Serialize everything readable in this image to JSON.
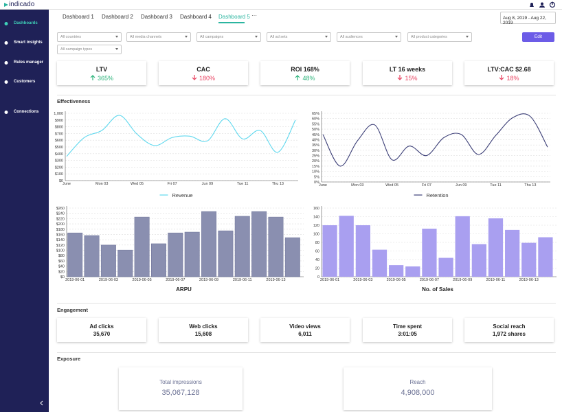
{
  "brand": "indicado",
  "nav": [
    "Dashboards",
    "Smart insights",
    "Rules manager",
    "Customers",
    "Connections"
  ],
  "tabs": {
    "items": [
      "Dashboard 1",
      "Dashboard 2",
      "Dashboard 3",
      "Dashboard 4",
      "Dashboard 5"
    ],
    "active": 4,
    "more": "···"
  },
  "date_range": "Aug 8, 2019 - Aug 22, 2019",
  "filters": [
    "All countries",
    "All media channels",
    "All campaigns",
    "All ad sets",
    "All audiences",
    "All product categories",
    "All campaign types"
  ],
  "edit": "Edit",
  "kpis": [
    {
      "label": "LTV",
      "change": "365%",
      "direction": "up"
    },
    {
      "label": "CAC",
      "change": "180%",
      "direction": "down"
    },
    {
      "label": "ROI 168%",
      "change": "48%",
      "direction": "up"
    },
    {
      "label": "LT 16 weeks",
      "change": "15%",
      "direction": "down"
    },
    {
      "label": "LTV:CAC $2.68",
      "change": "18%",
      "direction": "down"
    }
  ],
  "effectiveness": {
    "title": "Effectiveness",
    "charts": [
      {
        "type": "line",
        "series": [
          {
            "name": "Revenue",
            "color": "#5fd8ee",
            "values": [
              360,
              640,
              745,
              970,
              690,
              520,
              640,
              660,
              590,
              920,
              620,
              745,
              420,
              900
            ]
          }
        ],
        "categories": [
          "June",
          null,
          "Mon 03",
          null,
          "Wed 05",
          null,
          "Fri 07",
          null,
          "Jun 09",
          null,
          "Tue 11",
          null,
          "Thu 13",
          null
        ],
        "ylim": [
          0,
          1000
        ],
        "yticks": [
          {
            "value": 0,
            "label": "$0"
          },
          {
            "value": 100,
            "label": "$100"
          },
          {
            "value": 200,
            "label": "$200"
          },
          {
            "value": 300,
            "label": "$300"
          },
          {
            "value": 400,
            "label": "$400"
          },
          {
            "value": 500,
            "label": "$500"
          },
          {
            "value": 600,
            "label": "$600"
          },
          {
            "value": 700,
            "label": "$700"
          },
          {
            "value": 800,
            "label": "$800"
          },
          {
            "value": 900,
            "label": "$900"
          },
          {
            "value": 1000,
            "label": "1,000"
          }
        ],
        "grid": true
      },
      {
        "type": "line",
        "series": [
          {
            "name": "Retention",
            "color": "#3c3f77",
            "values": [
              45,
              15,
              39,
              54,
              21,
              34,
              25,
              42,
              45,
              26,
              44,
              61,
              62,
              33
            ]
          }
        ],
        "categories": [
          "June",
          null,
          "Mon 03",
          null,
          "Wed 05",
          null,
          "Fri 07",
          null,
          "Jun 09",
          null,
          "Tue 11",
          null,
          "Thu 13",
          null
        ],
        "ylim": [
          0,
          65
        ],
        "yticks": [
          {
            "value": 0,
            "label": "0%"
          },
          {
            "value": 5,
            "label": "5%"
          },
          {
            "value": 10,
            "label": "10%"
          },
          {
            "value": 15,
            "label": "15%"
          },
          {
            "value": 20,
            "label": "20%"
          },
          {
            "value": 25,
            "label": "25%"
          },
          {
            "value": 30,
            "label": "30%"
          },
          {
            "value": 35,
            "label": "35%"
          },
          {
            "value": 40,
            "label": "40%"
          },
          {
            "value": 45,
            "label": "45%"
          },
          {
            "value": 50,
            "label": "50%"
          },
          {
            "value": 55,
            "label": "55%"
          },
          {
            "value": 60,
            "label": "60%"
          },
          {
            "value": 65,
            "label": "65%"
          }
        ],
        "grid": true
      },
      {
        "type": "bar",
        "title": "ARPU",
        "color": "#8a8fb0",
        "values": [
          166,
          156,
          120,
          101,
          226,
          125,
          166,
          169,
          247,
          174,
          229,
          247,
          226,
          148
        ],
        "categories": [
          "2019-06-01",
          null,
          "2019-06-03",
          null,
          "2019-06-05",
          null,
          "2019-06-07",
          null,
          "2019-06-09",
          null,
          "2019-06-11",
          null,
          "2019-06-13",
          null
        ],
        "ylim": [
          0,
          260
        ],
        "yticks": [
          {
            "value": 0,
            "label": "$0"
          },
          {
            "value": 20,
            "label": "$20"
          },
          {
            "value": 40,
            "label": "$40"
          },
          {
            "value": 60,
            "label": "$60"
          },
          {
            "value": 80,
            "label": "$80"
          },
          {
            "value": 100,
            "label": "$100"
          },
          {
            "value": 120,
            "label": "$120"
          },
          {
            "value": 140,
            "label": "$140"
          },
          {
            "value": 160,
            "label": "$160"
          },
          {
            "value": 180,
            "label": "$180"
          },
          {
            "value": 200,
            "label": "$200"
          },
          {
            "value": 220,
            "label": "$220"
          },
          {
            "value": 240,
            "label": "$240"
          },
          {
            "value": 260,
            "label": "$260"
          }
        ],
        "grid": true
      },
      {
        "type": "bar",
        "title": "No. of Sales",
        "color": "#a99ff0",
        "values": [
          120,
          142,
          120,
          63,
          27,
          24,
          112,
          44,
          141,
          76,
          136,
          109,
          79,
          92
        ],
        "categories": [
          "2019-06-01",
          null,
          "2019-06-03",
          null,
          "2019-06-05",
          null,
          "2019-06-07",
          null,
          "2019-06-09",
          null,
          "2019-06-11",
          null,
          "2019-06-13",
          null
        ],
        "ylim": [
          0,
          160
        ],
        "yticks": [
          0,
          20,
          40,
          60,
          80,
          100,
          120,
          140,
          160
        ],
        "grid": true
      }
    ]
  },
  "engagement": {
    "title": "Engagement",
    "cards": [
      {
        "label": "Ad clicks",
        "value": "35,670"
      },
      {
        "label": "Web clicks",
        "value": "15,608"
      },
      {
        "label": "Video views",
        "value": "6,011"
      },
      {
        "label": "Time spent",
        "value": "3:01:05"
      },
      {
        "label": "Social reach",
        "value": "1,972 shares"
      }
    ]
  },
  "exposure": {
    "title": "Exposure",
    "cards": [
      {
        "label": "Total impressions",
        "value": "35,067,128"
      },
      {
        "label": "Reach",
        "value": "4,908,000"
      }
    ]
  }
}
